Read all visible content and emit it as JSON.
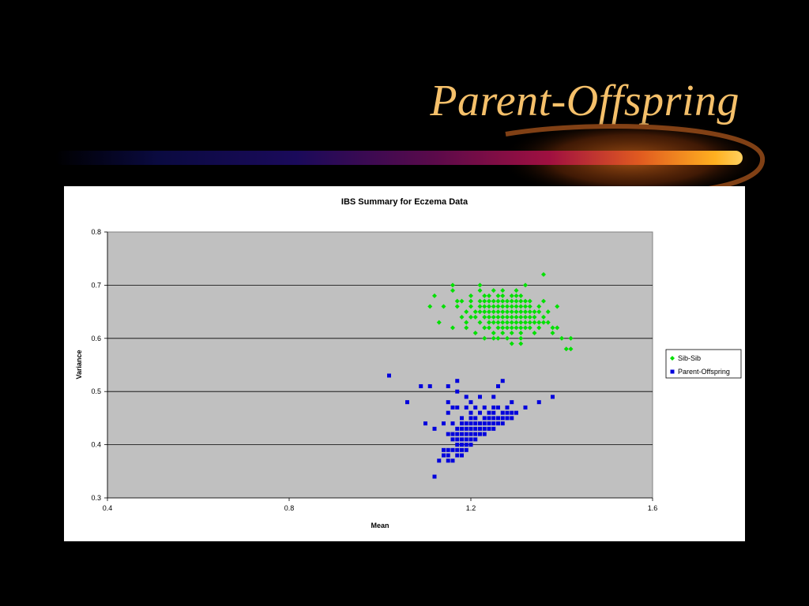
{
  "slide": {
    "title": "Parent-Offspring"
  },
  "colors": {
    "title": "#F5C06A",
    "plot_bg": "#C0C0C0",
    "sib_sib": "#00E000",
    "parent_offspring": "#0000DD"
  },
  "chart_data": {
    "type": "scatter",
    "title": "IBS Summary for Eczema Data",
    "xlabel": "Mean",
    "ylabel": "Variance",
    "xlim": [
      0.4,
      1.6
    ],
    "ylim": [
      0.3,
      0.8
    ],
    "xticks": [
      "0.4",
      "0.8",
      "1.2",
      "1.6"
    ],
    "yticks": [
      "0.3",
      "0.4",
      "0.5",
      "0.6",
      "0.7",
      "0.8"
    ],
    "grid": "horizontal",
    "legend_position": "right",
    "series": [
      {
        "name": "Sib-Sib",
        "marker": "diamond",
        "color": "#00E000",
        "points": [
          [
            1.36,
            0.72
          ],
          [
            1.16,
            0.7
          ],
          [
            1.22,
            0.7
          ],
          [
            1.32,
            0.7
          ],
          [
            1.16,
            0.69
          ],
          [
            1.22,
            0.69
          ],
          [
            1.25,
            0.69
          ],
          [
            1.27,
            0.69
          ],
          [
            1.3,
            0.69
          ],
          [
            1.12,
            0.68
          ],
          [
            1.2,
            0.68
          ],
          [
            1.23,
            0.68
          ],
          [
            1.24,
            0.68
          ],
          [
            1.26,
            0.68
          ],
          [
            1.27,
            0.68
          ],
          [
            1.29,
            0.68
          ],
          [
            1.3,
            0.68
          ],
          [
            1.31,
            0.68
          ],
          [
            1.17,
            0.67
          ],
          [
            1.18,
            0.67
          ],
          [
            1.2,
            0.67
          ],
          [
            1.22,
            0.67
          ],
          [
            1.23,
            0.67
          ],
          [
            1.24,
            0.67
          ],
          [
            1.25,
            0.67
          ],
          [
            1.26,
            0.67
          ],
          [
            1.27,
            0.67
          ],
          [
            1.28,
            0.67
          ],
          [
            1.29,
            0.67
          ],
          [
            1.3,
            0.67
          ],
          [
            1.31,
            0.67
          ],
          [
            1.32,
            0.67
          ],
          [
            1.33,
            0.67
          ],
          [
            1.36,
            0.67
          ],
          [
            1.11,
            0.66
          ],
          [
            1.14,
            0.66
          ],
          [
            1.17,
            0.66
          ],
          [
            1.2,
            0.66
          ],
          [
            1.22,
            0.66
          ],
          [
            1.23,
            0.66
          ],
          [
            1.24,
            0.66
          ],
          [
            1.25,
            0.66
          ],
          [
            1.26,
            0.66
          ],
          [
            1.27,
            0.66
          ],
          [
            1.28,
            0.66
          ],
          [
            1.29,
            0.66
          ],
          [
            1.3,
            0.66
          ],
          [
            1.31,
            0.66
          ],
          [
            1.32,
            0.66
          ],
          [
            1.33,
            0.66
          ],
          [
            1.35,
            0.66
          ],
          [
            1.39,
            0.66
          ],
          [
            1.19,
            0.65
          ],
          [
            1.21,
            0.65
          ],
          [
            1.22,
            0.65
          ],
          [
            1.23,
            0.65
          ],
          [
            1.24,
            0.65
          ],
          [
            1.25,
            0.65
          ],
          [
            1.26,
            0.65
          ],
          [
            1.27,
            0.65
          ],
          [
            1.28,
            0.65
          ],
          [
            1.29,
            0.65
          ],
          [
            1.3,
            0.65
          ],
          [
            1.31,
            0.65
          ],
          [
            1.32,
            0.65
          ],
          [
            1.33,
            0.65
          ],
          [
            1.34,
            0.65
          ],
          [
            1.35,
            0.65
          ],
          [
            1.37,
            0.65
          ],
          [
            1.18,
            0.64
          ],
          [
            1.2,
            0.64
          ],
          [
            1.21,
            0.64
          ],
          [
            1.23,
            0.64
          ],
          [
            1.24,
            0.64
          ],
          [
            1.25,
            0.64
          ],
          [
            1.26,
            0.64
          ],
          [
            1.27,
            0.64
          ],
          [
            1.28,
            0.64
          ],
          [
            1.29,
            0.64
          ],
          [
            1.3,
            0.64
          ],
          [
            1.31,
            0.64
          ],
          [
            1.32,
            0.64
          ],
          [
            1.33,
            0.64
          ],
          [
            1.34,
            0.64
          ],
          [
            1.36,
            0.64
          ],
          [
            1.13,
            0.63
          ],
          [
            1.19,
            0.63
          ],
          [
            1.22,
            0.63
          ],
          [
            1.24,
            0.63
          ],
          [
            1.25,
            0.63
          ],
          [
            1.26,
            0.63
          ],
          [
            1.27,
            0.63
          ],
          [
            1.28,
            0.63
          ],
          [
            1.29,
            0.63
          ],
          [
            1.3,
            0.63
          ],
          [
            1.31,
            0.63
          ],
          [
            1.32,
            0.63
          ],
          [
            1.33,
            0.63
          ],
          [
            1.34,
            0.63
          ],
          [
            1.35,
            0.63
          ],
          [
            1.36,
            0.63
          ],
          [
            1.37,
            0.63
          ],
          [
            1.16,
            0.62
          ],
          [
            1.19,
            0.62
          ],
          [
            1.23,
            0.62
          ],
          [
            1.24,
            0.62
          ],
          [
            1.26,
            0.62
          ],
          [
            1.27,
            0.62
          ],
          [
            1.28,
            0.62
          ],
          [
            1.29,
            0.62
          ],
          [
            1.3,
            0.62
          ],
          [
            1.31,
            0.62
          ],
          [
            1.32,
            0.62
          ],
          [
            1.33,
            0.62
          ],
          [
            1.35,
            0.62
          ],
          [
            1.38,
            0.62
          ],
          [
            1.39,
            0.62
          ],
          [
            1.21,
            0.61
          ],
          [
            1.25,
            0.61
          ],
          [
            1.27,
            0.61
          ],
          [
            1.29,
            0.61
          ],
          [
            1.31,
            0.61
          ],
          [
            1.34,
            0.61
          ],
          [
            1.38,
            0.61
          ],
          [
            1.23,
            0.6
          ],
          [
            1.25,
            0.6
          ],
          [
            1.26,
            0.6
          ],
          [
            1.28,
            0.6
          ],
          [
            1.31,
            0.6
          ],
          [
            1.4,
            0.6
          ],
          [
            1.42,
            0.6
          ],
          [
            1.29,
            0.59
          ],
          [
            1.31,
            0.59
          ],
          [
            1.41,
            0.58
          ],
          [
            1.42,
            0.58
          ]
        ]
      },
      {
        "name": "Parent-Offspring",
        "marker": "square",
        "color": "#0000DD",
        "points": [
          [
            1.02,
            0.53
          ],
          [
            1.17,
            0.52
          ],
          [
            1.27,
            0.52
          ],
          [
            1.09,
            0.51
          ],
          [
            1.11,
            0.51
          ],
          [
            1.15,
            0.51
          ],
          [
            1.26,
            0.51
          ],
          [
            1.17,
            0.5
          ],
          [
            1.19,
            0.49
          ],
          [
            1.22,
            0.49
          ],
          [
            1.25,
            0.49
          ],
          [
            1.38,
            0.49
          ],
          [
            1.06,
            0.48
          ],
          [
            1.15,
            0.48
          ],
          [
            1.2,
            0.48
          ],
          [
            1.29,
            0.48
          ],
          [
            1.35,
            0.48
          ],
          [
            1.16,
            0.47
          ],
          [
            1.17,
            0.47
          ],
          [
            1.19,
            0.47
          ],
          [
            1.21,
            0.47
          ],
          [
            1.23,
            0.47
          ],
          [
            1.25,
            0.47
          ],
          [
            1.26,
            0.47
          ],
          [
            1.28,
            0.47
          ],
          [
            1.32,
            0.47
          ],
          [
            1.15,
            0.46
          ],
          [
            1.2,
            0.46
          ],
          [
            1.22,
            0.46
          ],
          [
            1.24,
            0.46
          ],
          [
            1.25,
            0.46
          ],
          [
            1.27,
            0.46
          ],
          [
            1.28,
            0.46
          ],
          [
            1.29,
            0.46
          ],
          [
            1.3,
            0.46
          ],
          [
            1.18,
            0.45
          ],
          [
            1.2,
            0.45
          ],
          [
            1.21,
            0.45
          ],
          [
            1.23,
            0.45
          ],
          [
            1.24,
            0.45
          ],
          [
            1.25,
            0.45
          ],
          [
            1.26,
            0.45
          ],
          [
            1.27,
            0.45
          ],
          [
            1.28,
            0.45
          ],
          [
            1.29,
            0.45
          ],
          [
            1.14,
            0.44
          ],
          [
            1.16,
            0.44
          ],
          [
            1.18,
            0.44
          ],
          [
            1.19,
            0.44
          ],
          [
            1.2,
            0.44
          ],
          [
            1.21,
            0.44
          ],
          [
            1.22,
            0.44
          ],
          [
            1.23,
            0.44
          ],
          [
            1.24,
            0.44
          ],
          [
            1.25,
            0.44
          ],
          [
            1.26,
            0.44
          ],
          [
            1.27,
            0.44
          ],
          [
            1.1,
            0.44
          ],
          [
            1.17,
            0.43
          ],
          [
            1.18,
            0.43
          ],
          [
            1.19,
            0.43
          ],
          [
            1.2,
            0.43
          ],
          [
            1.21,
            0.43
          ],
          [
            1.22,
            0.43
          ],
          [
            1.23,
            0.43
          ],
          [
            1.24,
            0.43
          ],
          [
            1.25,
            0.43
          ],
          [
            1.12,
            0.43
          ],
          [
            1.15,
            0.42
          ],
          [
            1.16,
            0.42
          ],
          [
            1.17,
            0.42
          ],
          [
            1.18,
            0.42
          ],
          [
            1.19,
            0.42
          ],
          [
            1.2,
            0.42
          ],
          [
            1.21,
            0.42
          ],
          [
            1.22,
            0.42
          ],
          [
            1.23,
            0.42
          ],
          [
            1.16,
            0.41
          ],
          [
            1.17,
            0.41
          ],
          [
            1.18,
            0.41
          ],
          [
            1.19,
            0.41
          ],
          [
            1.2,
            0.41
          ],
          [
            1.21,
            0.41
          ],
          [
            1.17,
            0.4
          ],
          [
            1.18,
            0.4
          ],
          [
            1.19,
            0.4
          ],
          [
            1.2,
            0.4
          ],
          [
            1.14,
            0.39
          ],
          [
            1.15,
            0.39
          ],
          [
            1.16,
            0.39
          ],
          [
            1.17,
            0.39
          ],
          [
            1.18,
            0.39
          ],
          [
            1.19,
            0.39
          ],
          [
            1.14,
            0.38
          ],
          [
            1.15,
            0.38
          ],
          [
            1.17,
            0.38
          ],
          [
            1.18,
            0.38
          ],
          [
            1.13,
            0.37
          ],
          [
            1.15,
            0.37
          ],
          [
            1.16,
            0.37
          ],
          [
            1.12,
            0.34
          ]
        ]
      }
    ]
  }
}
